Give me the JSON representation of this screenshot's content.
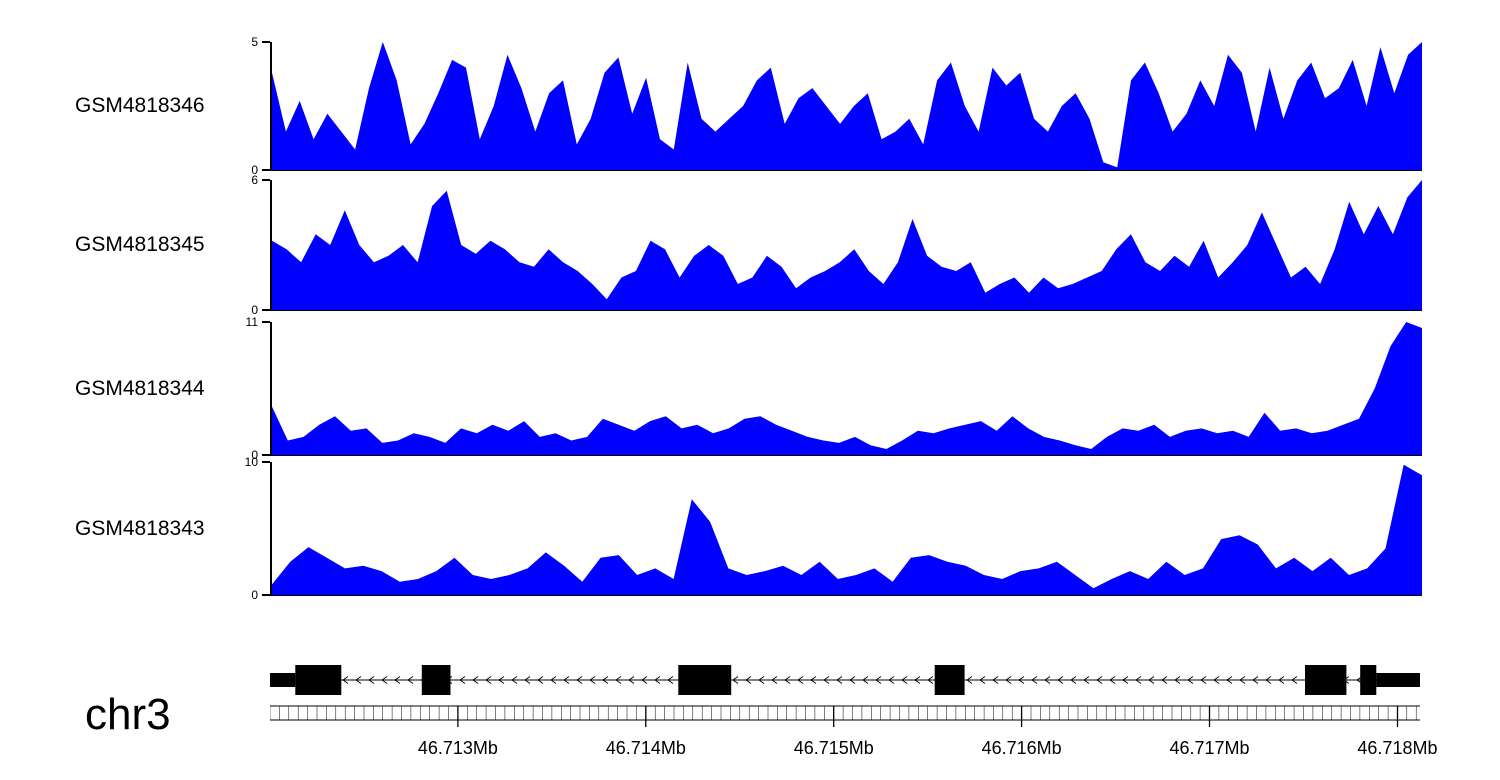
{
  "chart_data": {
    "type": "area",
    "title": "",
    "fill_color": "#0000ff",
    "x_domain_mb": {
      "start": 46.712,
      "end": 46.71812
    },
    "tracks": [
      {
        "label": "GSM4818346",
        "ymin": 0,
        "ymax": 5,
        "values": [
          3.8,
          1.5,
          2.7,
          1.2,
          2.2,
          1.5,
          0.8,
          3.2,
          5.0,
          3.5,
          1.0,
          1.8,
          3.0,
          4.3,
          4.0,
          1.2,
          2.5,
          4.5,
          3.2,
          1.5,
          3.0,
          3.5,
          1.0,
          2.0,
          3.8,
          4.4,
          2.2,
          3.6,
          1.2,
          0.8,
          4.2,
          2.0,
          1.5,
          2.0,
          2.5,
          3.5,
          4.0,
          1.8,
          2.8,
          3.2,
          2.5,
          1.8,
          2.5,
          3.0,
          1.2,
          1.5,
          2.0,
          1.0,
          3.5,
          4.2,
          2.5,
          1.5,
          4.0,
          3.3,
          3.8,
          2.0,
          1.5,
          2.5,
          3.0,
          2.0,
          0.3,
          0.1,
          3.5,
          4.2,
          3.0,
          1.5,
          2.2,
          3.5,
          2.5,
          4.5,
          3.8,
          1.5,
          4.0,
          2.0,
          3.5,
          4.2,
          2.8,
          3.2,
          4.3,
          2.5,
          4.8,
          3.0,
          4.5,
          5.0
        ]
      },
      {
        "label": "GSM4818345",
        "ymin": 0,
        "ymax": 6,
        "values": [
          3.2,
          2.8,
          2.2,
          3.5,
          3.0,
          4.6,
          3.0,
          2.2,
          2.5,
          3.0,
          2.2,
          4.8,
          5.5,
          3.0,
          2.6,
          3.2,
          2.8,
          2.2,
          2.0,
          2.8,
          2.2,
          1.8,
          1.2,
          0.5,
          1.5,
          1.8,
          3.2,
          2.8,
          1.5,
          2.5,
          3.0,
          2.5,
          1.2,
          1.5,
          2.5,
          2.0,
          1.0,
          1.5,
          1.8,
          2.2,
          2.8,
          1.8,
          1.2,
          2.2,
          4.2,
          2.5,
          2.0,
          1.8,
          2.2,
          0.8,
          1.2,
          1.5,
          0.8,
          1.5,
          1.0,
          1.2,
          1.5,
          1.8,
          2.8,
          3.5,
          2.2,
          1.8,
          2.5,
          2.0,
          3.2,
          1.5,
          2.2,
          3.0,
          4.5,
          3.0,
          1.5,
          2.0,
          1.2,
          2.8,
          5.0,
          3.5,
          4.8,
          3.5,
          5.2,
          6.0
        ]
      },
      {
        "label": "GSM4818344",
        "ymin": 0,
        "ymax": 11,
        "values": [
          4.0,
          1.2,
          1.5,
          2.5,
          3.2,
          2.0,
          2.2,
          1.0,
          1.2,
          1.8,
          1.5,
          1.0,
          2.2,
          1.8,
          2.5,
          2.0,
          2.8,
          1.5,
          1.8,
          1.2,
          1.5,
          3.0,
          2.5,
          2.0,
          2.8,
          3.2,
          2.2,
          2.5,
          1.8,
          2.2,
          3.0,
          3.2,
          2.5,
          2.0,
          1.5,
          1.2,
          1.0,
          1.5,
          0.8,
          0.5,
          1.2,
          2.0,
          1.8,
          2.2,
          2.5,
          2.8,
          2.0,
          3.2,
          2.2,
          1.5,
          1.2,
          0.8,
          0.5,
          1.5,
          2.2,
          2.0,
          2.5,
          1.5,
          2.0,
          2.2,
          1.8,
          2.0,
          1.5,
          3.5,
          2.0,
          2.2,
          1.8,
          2.0,
          2.5,
          3.0,
          5.5,
          9.0,
          11.0,
          10.5
        ]
      },
      {
        "label": "GSM4818343",
        "ymin": 0,
        "ymax": 10,
        "values": [
          0.8,
          2.5,
          3.6,
          2.8,
          2.0,
          2.2,
          1.8,
          1.0,
          1.2,
          1.8,
          2.8,
          1.5,
          1.2,
          1.5,
          2.0,
          3.2,
          2.2,
          1.0,
          2.8,
          3.0,
          1.5,
          2.0,
          1.2,
          7.2,
          5.5,
          2.0,
          1.5,
          1.8,
          2.2,
          1.5,
          2.5,
          1.2,
          1.5,
          2.0,
          1.0,
          2.8,
          3.0,
          2.5,
          2.2,
          1.5,
          1.2,
          1.8,
          2.0,
          2.5,
          1.5,
          0.5,
          1.2,
          1.8,
          1.2,
          2.5,
          1.5,
          2.0,
          4.2,
          4.5,
          3.8,
          2.0,
          2.8,
          1.8,
          2.8,
          1.5,
          2.0,
          3.5,
          9.8,
          9.0
        ]
      }
    ],
    "gene_model": {
      "strand": "minus",
      "exons": [
        {
          "start_frac": 0.0,
          "end_frac": 0.022,
          "kind": "utr"
        },
        {
          "start_frac": 0.022,
          "end_frac": 0.062,
          "kind": "exon"
        },
        {
          "start_frac": 0.132,
          "end_frac": 0.157,
          "kind": "exon"
        },
        {
          "start_frac": 0.355,
          "end_frac": 0.401,
          "kind": "exon"
        },
        {
          "start_frac": 0.578,
          "end_frac": 0.604,
          "kind": "exon"
        },
        {
          "start_frac": 0.9,
          "end_frac": 0.936,
          "kind": "exon"
        },
        {
          "start_frac": 0.948,
          "end_frac": 0.962,
          "kind": "exon"
        },
        {
          "start_frac": 0.962,
          "end_frac": 1.0,
          "kind": "utr"
        }
      ]
    },
    "axis": {
      "chromosome": "chr3",
      "tick_values": [
        46.713,
        46.714,
        46.715,
        46.716,
        46.717,
        46.718
      ],
      "tick_labels": [
        "46.713Mb",
        "46.714Mb",
        "46.715Mb",
        "46.716Mb",
        "46.717Mb",
        "46.718Mb"
      ]
    }
  }
}
